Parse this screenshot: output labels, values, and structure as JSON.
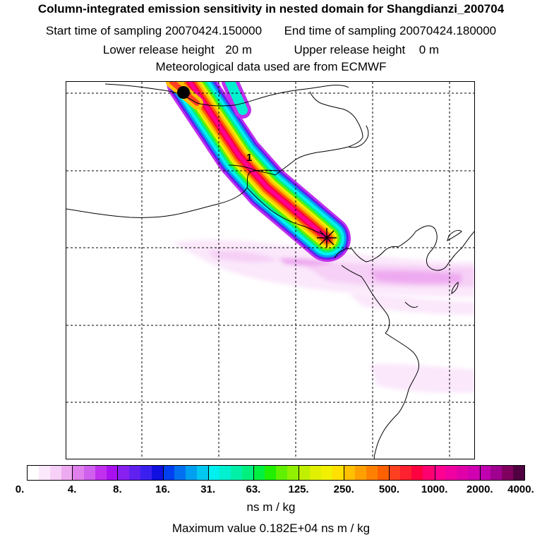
{
  "header": {
    "title": "Column-integrated emission sensitivity in nested domain for Shangdianzi_200704",
    "start_label": "Start time of sampling",
    "start_value": "20070424.150000",
    "end_label": "End time of sampling",
    "end_value": "20070424.180000",
    "lower_label": "Lower release height",
    "lower_value": "20 m",
    "upper_label": "Upper release height",
    "upper_value": "0 m",
    "meteo_text": "Meteorological data used are from ECMWF"
  },
  "map": {
    "day_marker_label": "1",
    "markers": [
      "receptor-cross",
      "plume-origin-dot"
    ]
  },
  "colorbar": {
    "tick_labels": [
      "0.",
      "4.",
      "8.",
      "16.",
      "31.",
      "63.",
      "125.",
      "250.",
      "500.",
      "1000.",
      "2000.",
      "4000."
    ],
    "segment_colors": [
      "#ffffff",
      "#fbe8fb",
      "#f6d0f6",
      "#eeaaf0",
      "#e080ec",
      "#d060ee",
      "#c030ee",
      "#a810f0",
      "#8820f0",
      "#6020f0",
      "#3a20ee",
      "#1010e0",
      "#0040f0",
      "#0070f0",
      "#00a0f0",
      "#00c8f0",
      "#00f0f0",
      "#00f0d0",
      "#00f0a8",
      "#00f080",
      "#00f040",
      "#20f000",
      "#60f000",
      "#90f000",
      "#c0f000",
      "#e0f000",
      "#f0f000",
      "#ffe000",
      "#ffc000",
      "#ffa000",
      "#ff8000",
      "#ff6000",
      "#ff4020",
      "#ff2030",
      "#ff0040",
      "#ff0070",
      "#ff0090",
      "#f000a0",
      "#e000a8",
      "#d000b0",
      "#c000b0",
      "#a00090",
      "#800060",
      "#500040"
    ],
    "units": "ns m / kg"
  },
  "footer": {
    "max_label": "Maximum value",
    "max_value": "0.182E+04",
    "max_units": "ns m / kg"
  }
}
